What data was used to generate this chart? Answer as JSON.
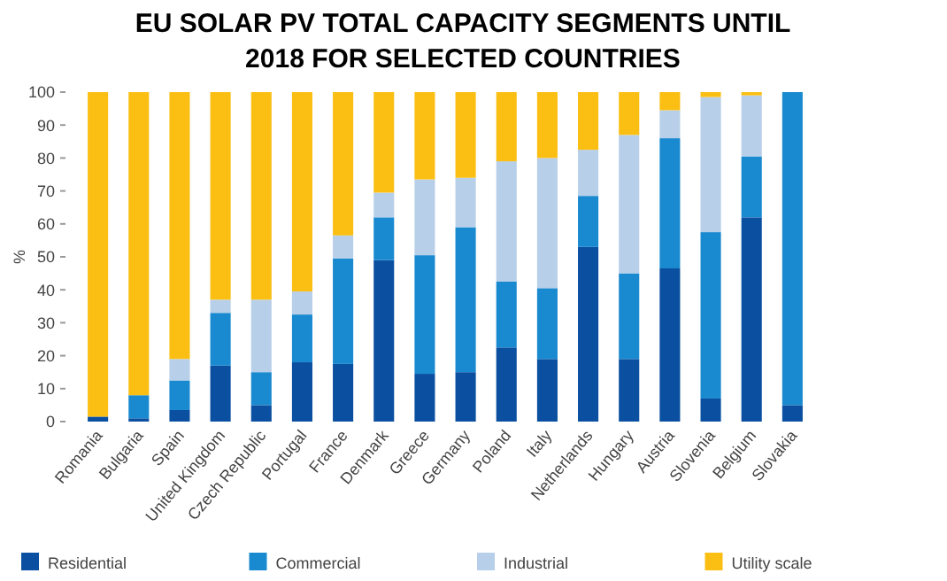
{
  "chart_data": {
    "type": "bar",
    "title": "EU SOLAR PV TOTAL CAPACITY SEGMENTS UNTIL\n2018 FOR SELECTED COUNTRIES",
    "ylabel": "%",
    "stacked": true,
    "legend": "bottom",
    "grid": false,
    "categories": [
      "Romania",
      "Bulgaria",
      "Spain",
      "United Kingdom",
      "Czech Republic",
      "Portugal",
      "France",
      "Denmark",
      "Greece",
      "Germany",
      "Poland",
      "Italy",
      "Netherlands",
      "Hungary",
      "Austria",
      "Slovenia",
      "Belgium",
      "Slovakia"
    ],
    "ylim": [
      0,
      100
    ],
    "yticks": [
      0,
      10,
      20,
      30,
      40,
      50,
      60,
      70,
      80,
      90,
      100
    ],
    "series": [
      {
        "name": "Residential",
        "color": "#0a4fa0",
        "values": [
          1.5,
          1,
          3.5,
          17,
          5,
          18,
          17.5,
          49,
          14.5,
          15,
          22.5,
          19,
          53,
          19,
          46.5,
          7,
          62,
          5
        ]
      },
      {
        "name": "Commercial",
        "color": "#1a8ad0",
        "values": [
          0,
          7,
          9,
          16,
          10,
          14.5,
          32,
          13,
          36,
          44,
          20,
          21.5,
          15.5,
          26,
          39.5,
          50.5,
          18.5,
          95
        ]
      },
      {
        "name": "Industrial",
        "color": "#b8cfe9",
        "values": [
          0,
          0,
          6.5,
          4,
          22,
          7,
          7,
          7.5,
          23,
          15,
          36.5,
          39.5,
          14,
          42,
          8.5,
          41,
          18.5,
          0
        ]
      },
      {
        "name": "Utility scale",
        "color": "#fbbf14",
        "values": [
          98.5,
          92,
          81,
          63,
          63,
          60.5,
          43.5,
          30.5,
          26.5,
          26,
          21,
          20,
          17.5,
          13,
          5.5,
          1.5,
          1,
          0
        ]
      }
    ]
  }
}
